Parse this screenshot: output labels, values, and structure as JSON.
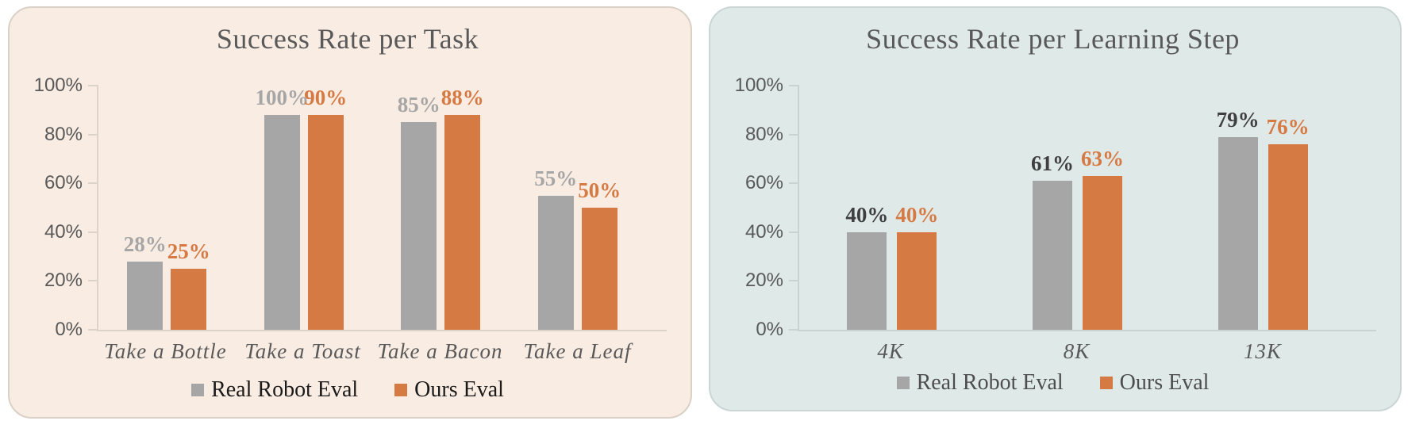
{
  "chart_data": [
    {
      "type": "bar",
      "title": "Success Rate per Task",
      "categories": [
        "Take a Bottle",
        "Take a Toast",
        "Take a Bacon",
        "Take a Leaf"
      ],
      "series": [
        {
          "name": "Real Robot Eval",
          "color": "#a6a6a6",
          "label_color": "#a6a6a6",
          "values": [
            28,
            100,
            85,
            55
          ]
        },
        {
          "name": "Ours Eval",
          "color": "#d67a44",
          "label_color": "#d67a44",
          "values": [
            25,
            90,
            88,
            50
          ]
        }
      ],
      "value_suffix": "%",
      "yticks": [
        "0%",
        "20%",
        "40%",
        "60%",
        "80%",
        "100%"
      ],
      "ylim": [
        0,
        100
      ],
      "grid": false,
      "legend_position": "bottom",
      "legend_labels": [
        "Real Robot Eval",
        "Ours Eval"
      ],
      "legend_text_color": "#1a1a1a",
      "panel_bg": "#f9ece3",
      "panel_border": "#d9d0c7",
      "axis_color": "#dcd3cb",
      "title_color": "#595959",
      "tick_label_color": "#595959",
      "category_color": "#595959"
    },
    {
      "type": "bar",
      "title": "Success Rate per Learning Step",
      "categories": [
        "4K",
        "8K",
        "13K"
      ],
      "series": [
        {
          "name": "Real Robot Eval",
          "color": "#a6a6a6",
          "label_color": "#3f3f3f",
          "values": [
            40,
            61,
            79
          ]
        },
        {
          "name": "Ours Eval",
          "color": "#d67a44",
          "label_color": "#d67a44",
          "values": [
            40,
            63,
            76
          ]
        }
      ],
      "value_suffix": "%",
      "yticks": [
        "0%",
        "20%",
        "40%",
        "60%",
        "80%",
        "100%"
      ],
      "ylim": [
        0,
        100
      ],
      "grid": false,
      "legend_position": "bottom",
      "legend_labels": [
        "Real Robot Eval",
        "Ours Eval"
      ],
      "legend_text_color": "#4d4d4d",
      "panel_bg": "#dfe9e8",
      "panel_border": "#c9d6d4",
      "axis_color": "#c7d4d2",
      "title_color": "#595959",
      "tick_label_color": "#595959",
      "category_color": "#595959"
    }
  ]
}
